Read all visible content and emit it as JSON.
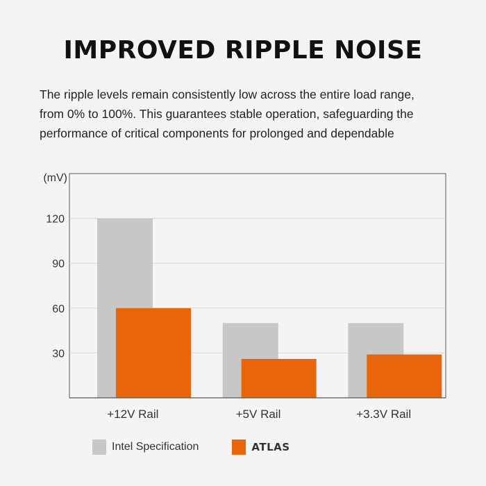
{
  "heading": "IMPROVED RIPPLE NOISE",
  "description": [
    "The ripple levels remain consistently low across the entire load range,",
    "from 0% to 100%. This guarantees stable operation, safeguarding the",
    "performance of critical components for prolonged and dependable"
  ],
  "colors": {
    "intel": "#c7c7c7",
    "atlas": "#e8650a",
    "grid": "#d8d8d8",
    "axis": "#555555",
    "plot_bg": "#f4f4f4"
  },
  "chart_data": {
    "type": "bar",
    "unit_label": "(mV)",
    "categories": [
      "+12V Rail",
      "+5V Rail",
      "+3.3V Rail"
    ],
    "yticks": [
      30,
      60,
      90,
      120
    ],
    "ylim": [
      0,
      150
    ],
    "grid": true,
    "legend_position": "bottom",
    "series": [
      {
        "name": "Intel Specification",
        "values": [
          120,
          50,
          50
        ]
      },
      {
        "name": "ATLAS",
        "values": [
          60,
          26,
          29
        ]
      }
    ]
  }
}
